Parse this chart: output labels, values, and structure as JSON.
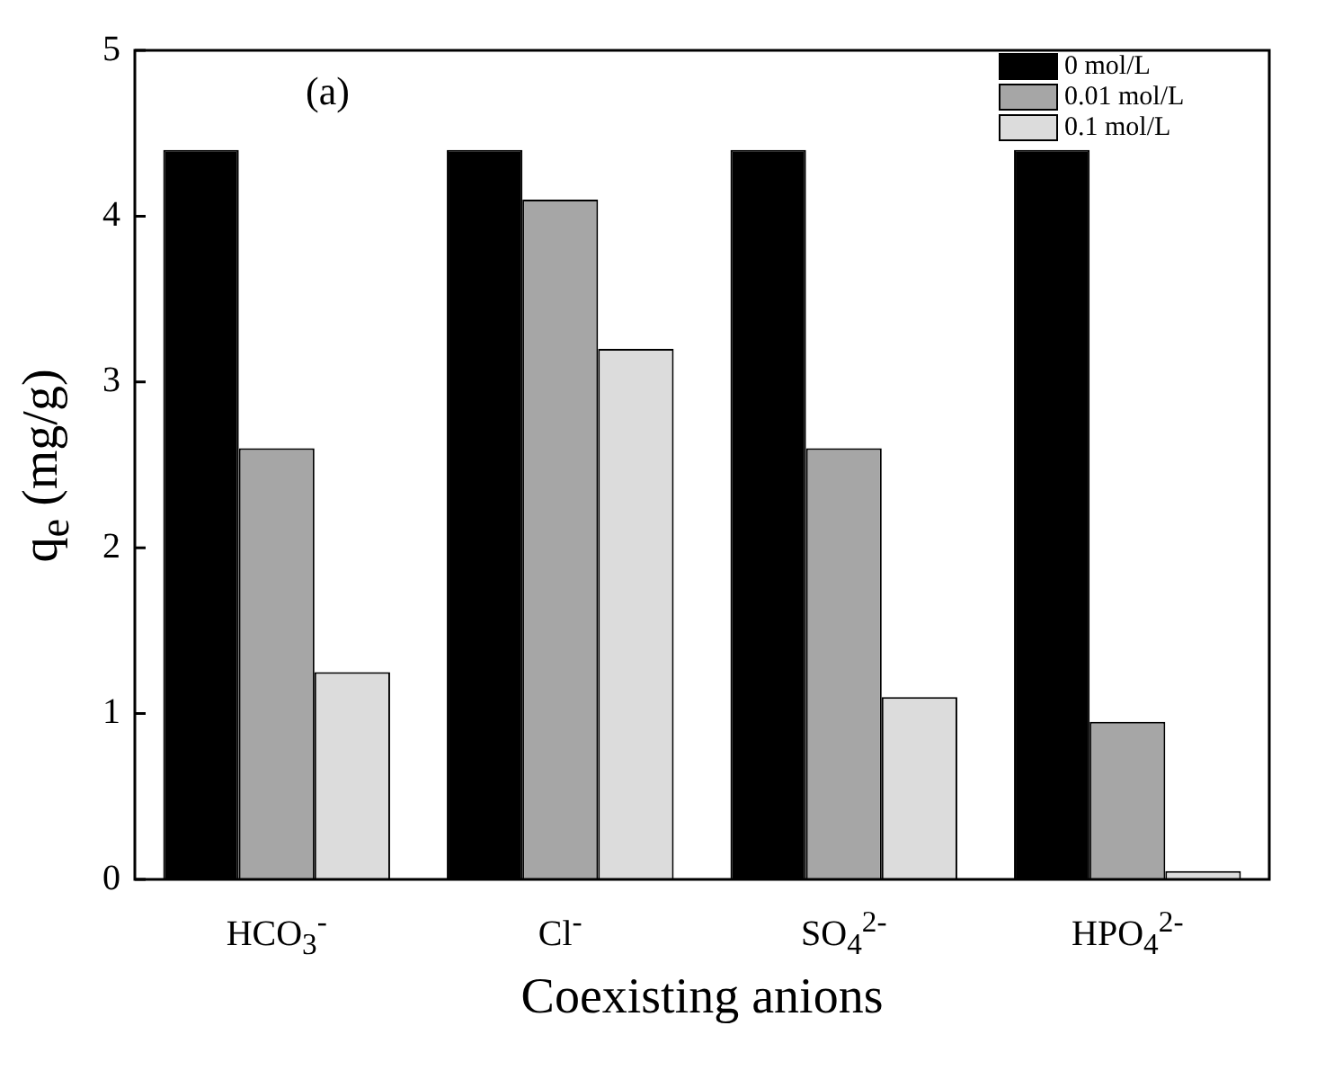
{
  "chart_data": {
    "type": "bar",
    "xlabel": "Coexisting anions",
    "ylabel": "q$_{e}$ (mg/g)",
    "categories": [
      "HCO$_{3}$$^{-}$",
      "Cl$^{-}$",
      "SO$_{4}$$^{2-}$",
      "HPO$_{4}$$^{2-}$"
    ],
    "series": [
      {
        "name": "0 mol/L",
        "color": "#000000",
        "values": [
          4.4,
          4.4,
          4.4,
          4.4
        ]
      },
      {
        "name": "0.01 mol/L",
        "color": "#a6a6a6",
        "values": [
          2.6,
          4.1,
          2.6,
          0.95
        ]
      },
      {
        "name": "0.1 mol/L",
        "color": "#dcdcdc",
        "values": [
          1.25,
          3.2,
          1.1,
          0.05
        ]
      }
    ],
    "ylim": [
      0,
      5
    ],
    "yticks": [
      0,
      1,
      2,
      3,
      4,
      5
    ],
    "grid": false,
    "legend": "top right",
    "annotations": [
      "(a)"
    ]
  }
}
